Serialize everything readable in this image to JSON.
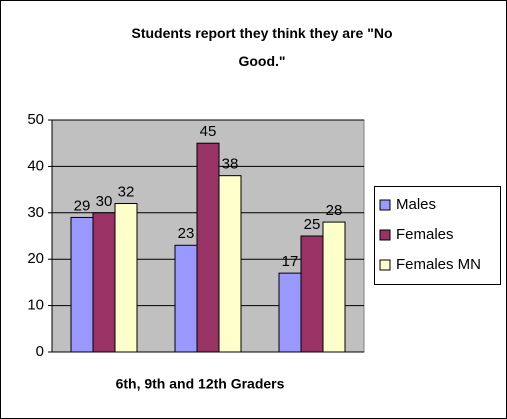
{
  "chart_data": {
    "type": "bar",
    "title": "Students report they think they are \"No Good.\"",
    "x_label": "6th, 9th and 12th Graders",
    "categories": [
      null,
      null,
      null
    ],
    "series": [
      {
        "name": "Males",
        "color": "#9999ff",
        "values": [
          29,
          23,
          17
        ]
      },
      {
        "name": "Females",
        "color": "#993366",
        "values": [
          30,
          45,
          25
        ]
      },
      {
        "name": "Females MN",
        "color": "#ffffcc",
        "values": [
          32,
          38,
          28
        ]
      }
    ],
    "ylim": [
      0,
      50
    ],
    "yticks": [
      0,
      10,
      20,
      30,
      40,
      50
    ],
    "grid": true,
    "legend": "right"
  }
}
